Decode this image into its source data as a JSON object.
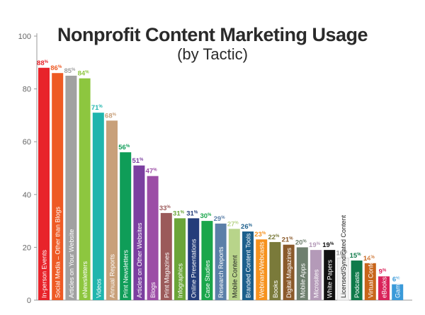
{
  "chart_data": {
    "type": "bar",
    "title": "Nonprofit Content Marketing Usage",
    "subtitle": "(by Tactic)",
    "xlabel": "",
    "ylabel": "",
    "ylim": [
      0,
      100
    ],
    "yticks": [
      0,
      20,
      40,
      60,
      80,
      100
    ],
    "grid": false,
    "legend": "none",
    "value_suffix": "%",
    "categories": [
      "In-person Events",
      "Social Media – Other than Blogs",
      "Articles on Your Website",
      "eNewsletters",
      "Videos",
      "Annual Reports",
      "Print Newsletters",
      "Articles on Other Websites",
      "Blogs",
      "Print Magazines",
      "Infographics",
      "Online Presentations",
      "Case Studies",
      "Research Reports",
      "Mobile Content",
      "Branded Content Tools",
      "Webinars/Webcasts",
      "Books",
      "Digital Magazines",
      "Mobile Apps",
      "Microsites",
      "White Papers",
      "Licensed/Syndicated Content",
      "Podcasts",
      "Virtual Conferences",
      "eBooks",
      "Games/Gamification"
    ],
    "values": [
      88,
      86,
      85,
      84,
      71,
      68,
      56,
      51,
      47,
      33,
      31,
      31,
      30,
      29,
      27,
      26,
      23,
      22,
      21,
      20,
      19,
      19,
      16,
      15,
      14,
      9,
      6
    ],
    "colors": [
      "#e8232a",
      "#ee5a24",
      "#a1a1a1",
      "#8dc63f",
      "#1fb5ad",
      "#c8a07a",
      "#0f9d58",
      "#7b3fa0",
      "#9c4da6",
      "#9b5a5a",
      "#6ba539",
      "#243d7a",
      "#1aa64b",
      "#5b7fa8",
      "#b8d48a",
      "#1c5f8c",
      "#f6921e",
      "#7a7a3a",
      "#8b5a2b",
      "#6e7f6e",
      "#b49ab8",
      "#111111",
      "#f2f2f2",
      "#0f7a4a",
      "#c8651b",
      "#d9235a",
      "#3a9ad9"
    ],
    "label_colors": [
      "#e8232a",
      "#ee5a24",
      "#a1a1a1",
      "#8dc63f",
      "#1fb5ad",
      "#c8a07a",
      "#0f9d58",
      "#7b3fa0",
      "#9c4da6",
      "#9b5a5a",
      "#6ba539",
      "#243d7a",
      "#1aa64b",
      "#5b7fa8",
      "#b8d48a",
      "#1c5f8c",
      "#f6921e",
      "#7a7a3a",
      "#8b5a2b",
      "#6e7f6e",
      "#b49ab8",
      "#111111",
      "#9a9a9a",
      "#0f7a4a",
      "#c8651b",
      "#d9235a",
      "#3a9ad9"
    ]
  }
}
